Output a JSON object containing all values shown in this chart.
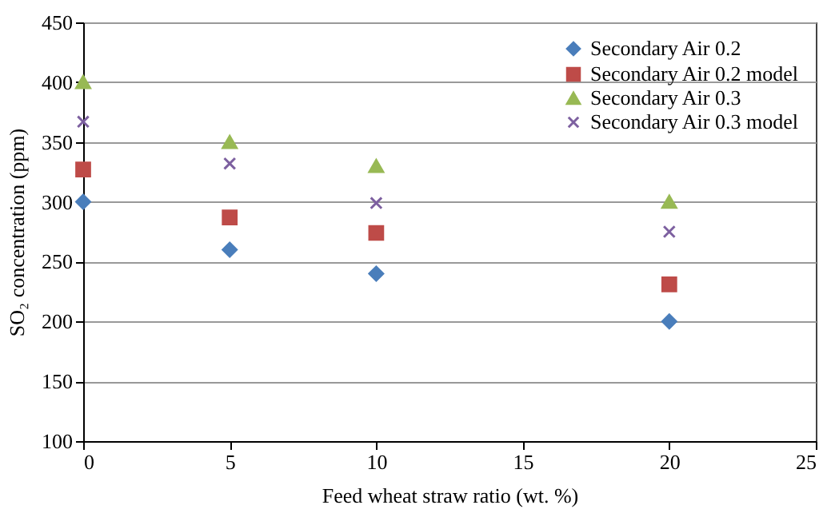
{
  "chart_data": {
    "type": "scatter",
    "xlabel": "Feed wheat straw ratio (wt. %)",
    "ylabel": "SO₂ concentration (ppm)",
    "x": [
      0,
      5,
      10,
      20
    ],
    "series": [
      {
        "name": "Secondary Air 0.2",
        "color": "#4a7ebb",
        "marker": "diamond",
        "values": [
          300,
          260,
          240,
          200
        ]
      },
      {
        "name": "Secondary Air 0.2 model",
        "color": "#be4b48",
        "marker": "square",
        "values": [
          327,
          287,
          274,
          231
        ]
      },
      {
        "name": "Secondary Air 0.3",
        "color": "#98b954",
        "marker": "triangle",
        "values": [
          400,
          350,
          330,
          300
        ]
      },
      {
        "name": "Secondary Air 0.3 model",
        "color": "#7d60a0",
        "marker": "cross",
        "values": [
          367,
          332,
          299,
          275
        ]
      }
    ],
    "xlim": [
      0,
      25
    ],
    "xticks": [
      0,
      5,
      10,
      15,
      20,
      25
    ],
    "ylim": [
      100,
      450
    ],
    "yticks": [
      100,
      150,
      200,
      250,
      300,
      350,
      400,
      450
    ],
    "grid": "y",
    "legend": "top right"
  }
}
